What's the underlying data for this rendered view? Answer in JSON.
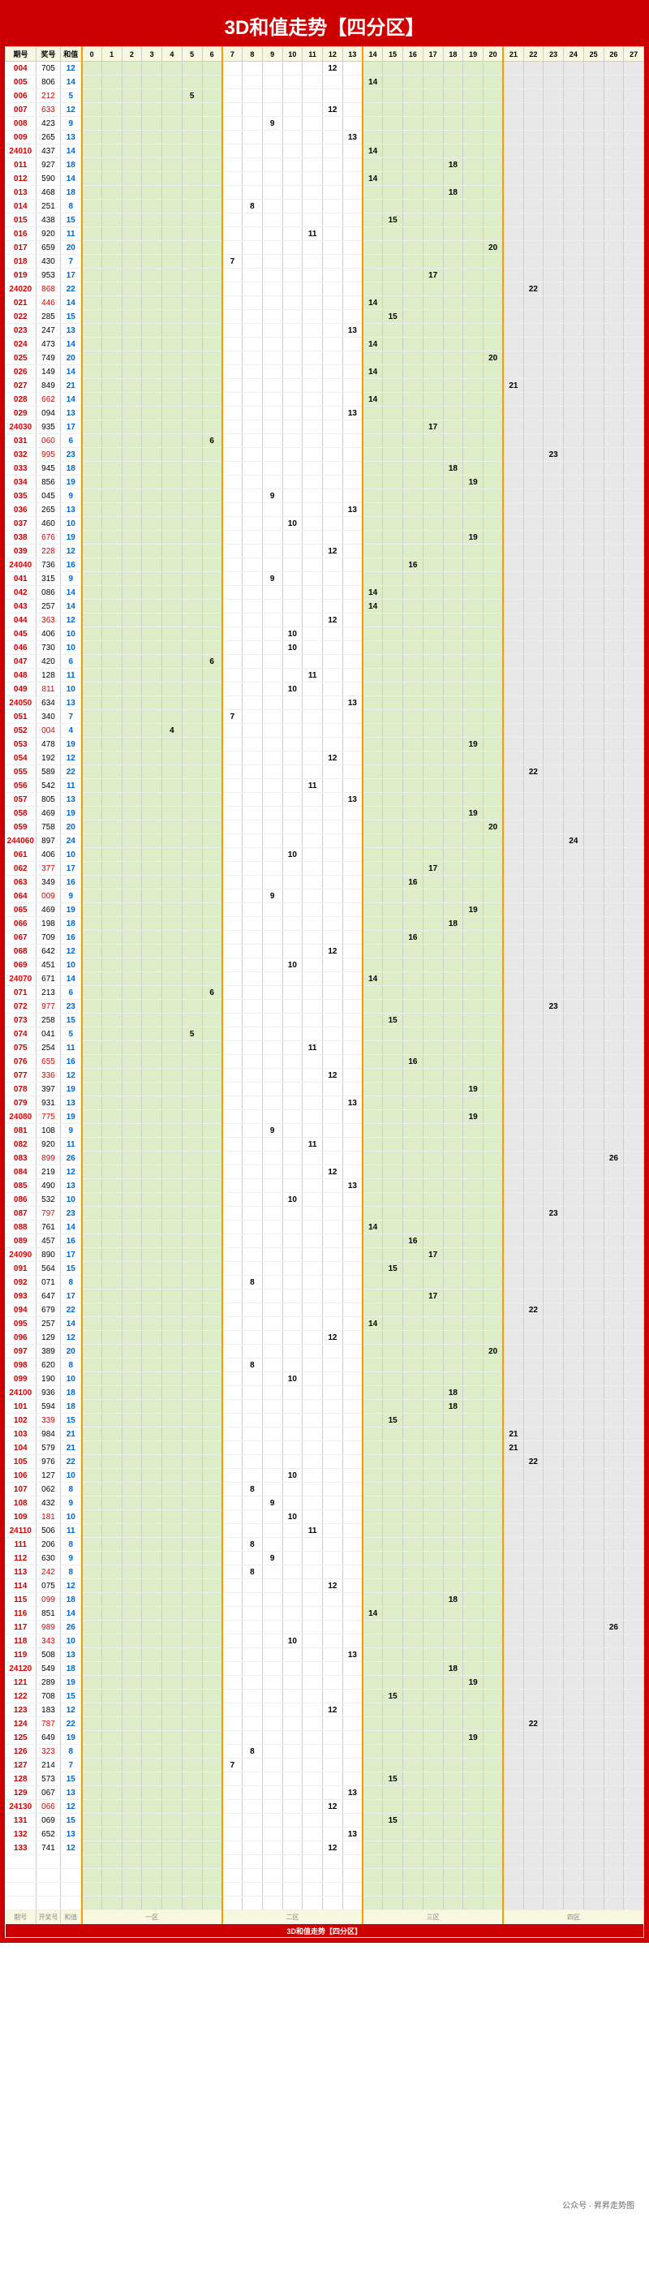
{
  "title": "3D和值走势【四分区】",
  "headers": {
    "period": "期号",
    "lottery": "奖号",
    "sum": "和值"
  },
  "zones": {
    "z1": {
      "start": 0,
      "end": 6,
      "bg": "#dcedc8"
    },
    "z2": {
      "start": 7,
      "end": 13,
      "bg": "#ffffff"
    },
    "z3": {
      "start": 14,
      "end": 20,
      "bg": "#dcedc8"
    },
    "z4": {
      "start": 21,
      "end": 27,
      "bg": "#e8e8e8"
    }
  },
  "cols": [
    0,
    1,
    2,
    3,
    4,
    5,
    6,
    7,
    8,
    9,
    10,
    11,
    12,
    13,
    14,
    15,
    16,
    17,
    18,
    19,
    20,
    21,
    22,
    23,
    24,
    25,
    26,
    27
  ],
  "footer": {
    "labels": [
      "期号",
      "开奖号",
      "和值"
    ],
    "zones": [
      "一区",
      "二区",
      "三区",
      "四区"
    ],
    "bottom": "3D和值走势【四分区】"
  },
  "watermark": "公众号 · 昇昇走势图",
  "colors": {
    "border": "#cc0000",
    "header_bg": "#f8f8e0",
    "sep": "#ff9900",
    "period": "#cc0000",
    "sum": "#0066cc"
  },
  "rows": [
    {
      "p": "004",
      "l": "705",
      "s": 12
    },
    {
      "p": "005",
      "l": "806",
      "s": 14
    },
    {
      "p": "006",
      "l": "212",
      "s": 5,
      "lr": 1
    },
    {
      "p": "007",
      "l": "633",
      "s": 12,
      "lr": 1
    },
    {
      "p": "008",
      "l": "423",
      "s": 9
    },
    {
      "p": "009",
      "l": "265",
      "s": 13
    },
    {
      "p": "24010",
      "l": "437",
      "s": 14,
      "pr": 1
    },
    {
      "p": "011",
      "l": "927",
      "s": 18
    },
    {
      "p": "012",
      "l": "590",
      "s": 14
    },
    {
      "p": "013",
      "l": "468",
      "s": 18
    },
    {
      "p": "014",
      "l": "251",
      "s": 8
    },
    {
      "p": "015",
      "l": "438",
      "s": 15
    },
    {
      "p": "016",
      "l": "920",
      "s": 11
    },
    {
      "p": "017",
      "l": "659",
      "s": 20
    },
    {
      "p": "018",
      "l": "430",
      "s": 7
    },
    {
      "p": "019",
      "l": "953",
      "s": 17
    },
    {
      "p": "24020",
      "l": "868",
      "s": 22,
      "pr": 1,
      "lr": 1
    },
    {
      "p": "021",
      "l": "446",
      "s": 14,
      "lr": 1
    },
    {
      "p": "022",
      "l": "285",
      "s": 15
    },
    {
      "p": "023",
      "l": "247",
      "s": 13
    },
    {
      "p": "024",
      "l": "473",
      "s": 14
    },
    {
      "p": "025",
      "l": "749",
      "s": 20
    },
    {
      "p": "026",
      "l": "149",
      "s": 14
    },
    {
      "p": "027",
      "l": "849",
      "s": 21
    },
    {
      "p": "028",
      "l": "662",
      "s": 14,
      "lr": 1
    },
    {
      "p": "029",
      "l": "094",
      "s": 13
    },
    {
      "p": "24030",
      "l": "935",
      "s": 17,
      "pr": 1
    },
    {
      "p": "031",
      "l": "060",
      "s": 6,
      "lr": 1
    },
    {
      "p": "032",
      "l": "995",
      "s": 23,
      "lr": 1
    },
    {
      "p": "033",
      "l": "945",
      "s": 18
    },
    {
      "p": "034",
      "l": "856",
      "s": 19
    },
    {
      "p": "035",
      "l": "045",
      "s": 9
    },
    {
      "p": "036",
      "l": "265",
      "s": 13
    },
    {
      "p": "037",
      "l": "460",
      "s": 10
    },
    {
      "p": "038",
      "l": "676",
      "s": 19,
      "lr": 1
    },
    {
      "p": "039",
      "l": "228",
      "s": 12,
      "lr": 1
    },
    {
      "p": "24040",
      "l": "736",
      "s": 16,
      "pr": 1
    },
    {
      "p": "041",
      "l": "315",
      "s": 9
    },
    {
      "p": "042",
      "l": "086",
      "s": 14
    },
    {
      "p": "043",
      "l": "257",
      "s": 14
    },
    {
      "p": "044",
      "l": "363",
      "s": 12,
      "lr": 1
    },
    {
      "p": "045",
      "l": "406",
      "s": 10
    },
    {
      "p": "046",
      "l": "730",
      "s": 10
    },
    {
      "p": "047",
      "l": "420",
      "s": 6
    },
    {
      "p": "048",
      "l": "128",
      "s": 11
    },
    {
      "p": "049",
      "l": "811",
      "s": 10,
      "lr": 1
    },
    {
      "p": "24050",
      "l": "634",
      "s": 13,
      "pr": 1
    },
    {
      "p": "051",
      "l": "340",
      "s": 7
    },
    {
      "p": "052",
      "l": "004",
      "s": 4,
      "lr": 1
    },
    {
      "p": "053",
      "l": "478",
      "s": 19
    },
    {
      "p": "054",
      "l": "192",
      "s": 12
    },
    {
      "p": "055",
      "l": "589",
      "s": 22
    },
    {
      "p": "056",
      "l": "542",
      "s": 11
    },
    {
      "p": "057",
      "l": "805",
      "s": 13
    },
    {
      "p": "058",
      "l": "469",
      "s": 19
    },
    {
      "p": "059",
      "l": "758",
      "s": 20
    },
    {
      "p": "244060",
      "l": "897",
      "s": 24,
      "pr": 1
    },
    {
      "p": "061",
      "l": "406",
      "s": 10
    },
    {
      "p": "062",
      "l": "377",
      "s": 17,
      "lr": 1
    },
    {
      "p": "063",
      "l": "349",
      "s": 16
    },
    {
      "p": "064",
      "l": "009",
      "s": 9,
      "lr": 1
    },
    {
      "p": "065",
      "l": "469",
      "s": 19
    },
    {
      "p": "066",
      "l": "198",
      "s": 18
    },
    {
      "p": "067",
      "l": "709",
      "s": 16
    },
    {
      "p": "068",
      "l": "642",
      "s": 12
    },
    {
      "p": "069",
      "l": "451",
      "s": 10
    },
    {
      "p": "24070",
      "l": "671",
      "s": 14,
      "pr": 1
    },
    {
      "p": "071",
      "l": "213",
      "s": 6
    },
    {
      "p": "072",
      "l": "977",
      "s": 23,
      "lr": 1
    },
    {
      "p": "073",
      "l": "258",
      "s": 15
    },
    {
      "p": "074",
      "l": "041",
      "s": 5
    },
    {
      "p": "075",
      "l": "254",
      "s": 11
    },
    {
      "p": "076",
      "l": "655",
      "s": 16,
      "lr": 1
    },
    {
      "p": "077",
      "l": "336",
      "s": 12,
      "lr": 1
    },
    {
      "p": "078",
      "l": "397",
      "s": 19
    },
    {
      "p": "079",
      "l": "931",
      "s": 13
    },
    {
      "p": "24080",
      "l": "775",
      "s": 19,
      "pr": 1,
      "lr": 1
    },
    {
      "p": "081",
      "l": "108",
      "s": 9
    },
    {
      "p": "082",
      "l": "920",
      "s": 11
    },
    {
      "p": "083",
      "l": "899",
      "s": 26,
      "lr": 1
    },
    {
      "p": "084",
      "l": "219",
      "s": 12
    },
    {
      "p": "085",
      "l": "490",
      "s": 13
    },
    {
      "p": "086",
      "l": "532",
      "s": 10
    },
    {
      "p": "087",
      "l": "797",
      "s": 23,
      "lr": 1
    },
    {
      "p": "088",
      "l": "761",
      "s": 14
    },
    {
      "p": "089",
      "l": "457",
      "s": 16
    },
    {
      "p": "24090",
      "l": "890",
      "s": 17,
      "pr": 1
    },
    {
      "p": "091",
      "l": "564",
      "s": 15
    },
    {
      "p": "092",
      "l": "071",
      "s": 8
    },
    {
      "p": "093",
      "l": "647",
      "s": 17
    },
    {
      "p": "094",
      "l": "679",
      "s": 22
    },
    {
      "p": "095",
      "l": "257",
      "s": 14
    },
    {
      "p": "096",
      "l": "129",
      "s": 12
    },
    {
      "p": "097",
      "l": "389",
      "s": 20
    },
    {
      "p": "098",
      "l": "620",
      "s": 8
    },
    {
      "p": "099",
      "l": "190",
      "s": 10
    },
    {
      "p": "24100",
      "l": "936",
      "s": 18,
      "pr": 1
    },
    {
      "p": "101",
      "l": "594",
      "s": 18
    },
    {
      "p": "102",
      "l": "339",
      "s": 15,
      "lr": 1
    },
    {
      "p": "103",
      "l": "984",
      "s": 21
    },
    {
      "p": "104",
      "l": "579",
      "s": 21
    },
    {
      "p": "105",
      "l": "976",
      "s": 22
    },
    {
      "p": "106",
      "l": "127",
      "s": 10
    },
    {
      "p": "107",
      "l": "062",
      "s": 8
    },
    {
      "p": "108",
      "l": "432",
      "s": 9
    },
    {
      "p": "109",
      "l": "181",
      "s": 10,
      "lr": 1
    },
    {
      "p": "24110",
      "l": "506",
      "s": 11,
      "pr": 1
    },
    {
      "p": "111",
      "l": "206",
      "s": 8
    },
    {
      "p": "112",
      "l": "630",
      "s": 9
    },
    {
      "p": "113",
      "l": "242",
      "s": 8,
      "lr": 1
    },
    {
      "p": "114",
      "l": "075",
      "s": 12
    },
    {
      "p": "115",
      "l": "099",
      "s": 18,
      "lr": 1
    },
    {
      "p": "116",
      "l": "851",
      "s": 14
    },
    {
      "p": "117",
      "l": "989",
      "s": 26,
      "lr": 1
    },
    {
      "p": "118",
      "l": "343",
      "s": 10,
      "lr": 1
    },
    {
      "p": "119",
      "l": "508",
      "s": 13
    },
    {
      "p": "24120",
      "l": "549",
      "s": 18,
      "pr": 1
    },
    {
      "p": "121",
      "l": "289",
      "s": 19
    },
    {
      "p": "122",
      "l": "708",
      "s": 15
    },
    {
      "p": "123",
      "l": "183",
      "s": 12
    },
    {
      "p": "124",
      "l": "787",
      "s": 22,
      "lr": 1
    },
    {
      "p": "125",
      "l": "649",
      "s": 19
    },
    {
      "p": "126",
      "l": "323",
      "s": 8,
      "lr": 1
    },
    {
      "p": "127",
      "l": "214",
      "s": 7
    },
    {
      "p": "128",
      "l": "573",
      "s": 15
    },
    {
      "p": "129",
      "l": "067",
      "s": 13
    },
    {
      "p": "24130",
      "l": "066",
      "s": 12,
      "pr": 1,
      "lr": 1
    },
    {
      "p": "131",
      "l": "069",
      "s": 15
    },
    {
      "p": "132",
      "l": "652",
      "s": 13
    },
    {
      "p": "133",
      "l": "741",
      "s": 12
    }
  ]
}
